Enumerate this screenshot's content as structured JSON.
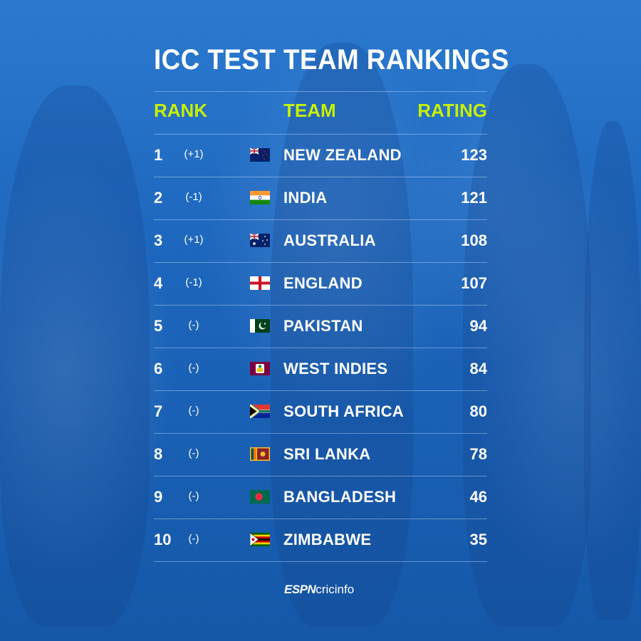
{
  "title": "ICC TEST TEAM RANKINGS",
  "headers": {
    "rank": "RANK",
    "team": "TEAM",
    "rating": "RATING"
  },
  "rows": [
    {
      "rank": "1",
      "change": "(+1)",
      "team": "NEW ZEALAND",
      "rating": "123",
      "flag": "new-zealand"
    },
    {
      "rank": "2",
      "change": "(-1)",
      "team": "INDIA",
      "rating": "121",
      "flag": "india"
    },
    {
      "rank": "3",
      "change": "(+1)",
      "team": "AUSTRALIA",
      "rating": "108",
      "flag": "australia"
    },
    {
      "rank": "4",
      "change": "(-1)",
      "team": "ENGLAND",
      "rating": "107",
      "flag": "england"
    },
    {
      "rank": "5",
      "change": "(-)",
      "team": "PAKISTAN",
      "rating": "94",
      "flag": "pakistan"
    },
    {
      "rank": "6",
      "change": "(-)",
      "team": "WEST INDIES",
      "rating": "84",
      "flag": "west-indies"
    },
    {
      "rank": "7",
      "change": "(-)",
      "team": "SOUTH AFRICA",
      "rating": "80",
      "flag": "south-africa"
    },
    {
      "rank": "8",
      "change": "(-)",
      "team": "SRI LANKA",
      "rating": "78",
      "flag": "sri-lanka"
    },
    {
      "rank": "9",
      "change": "(-)",
      "team": "BANGLADESH",
      "rating": "46",
      "flag": "bangladesh"
    },
    {
      "rank": "10",
      "change": "(-)",
      "team": "ZIMBABWE",
      "rating": "35",
      "flag": "zimbabwe"
    }
  ],
  "brand": {
    "espn": "ESPN",
    "cricinfo": "cricinfo"
  },
  "colors": {
    "accent": "#c8f000",
    "background": "#1d66bd",
    "text": "#ffffff"
  }
}
